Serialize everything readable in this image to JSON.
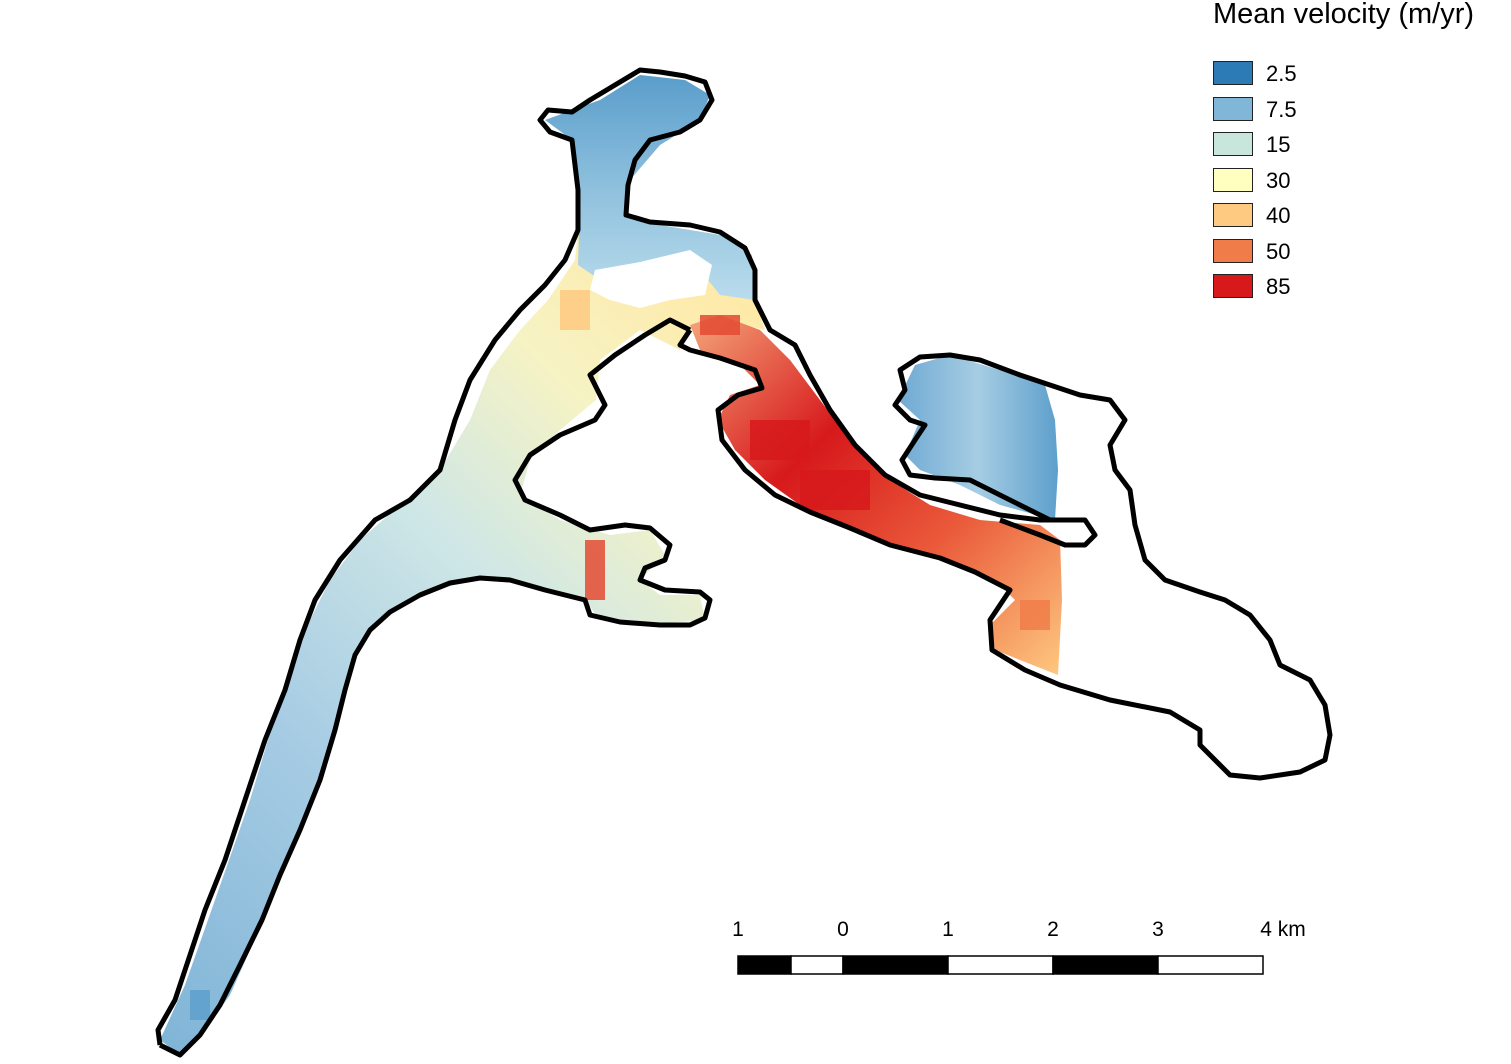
{
  "legend": {
    "title": "Mean velocity (m/yr)",
    "items": [
      {
        "label": "2.5",
        "color": "#2c7bb6"
      },
      {
        "label": "7.5",
        "color": "#80b7d8"
      },
      {
        "label": "15",
        "color": "#c9e6dc"
      },
      {
        "label": "30",
        "color": "#ffffbf"
      },
      {
        "label": "40",
        "color": "#fec980"
      },
      {
        "label": "50",
        "color": "#f07c4a"
      },
      {
        "label": "85",
        "color": "#d7191c"
      }
    ]
  },
  "scale_bar": {
    "labels": [
      "1",
      "0",
      "1",
      "2",
      "3",
      "4 km"
    ],
    "unit": "km"
  },
  "map": {
    "outline_color": "#000000",
    "colors": {
      "background": "#ffffff",
      "low": "#2c7bb6",
      "high": "#d7191c"
    }
  }
}
